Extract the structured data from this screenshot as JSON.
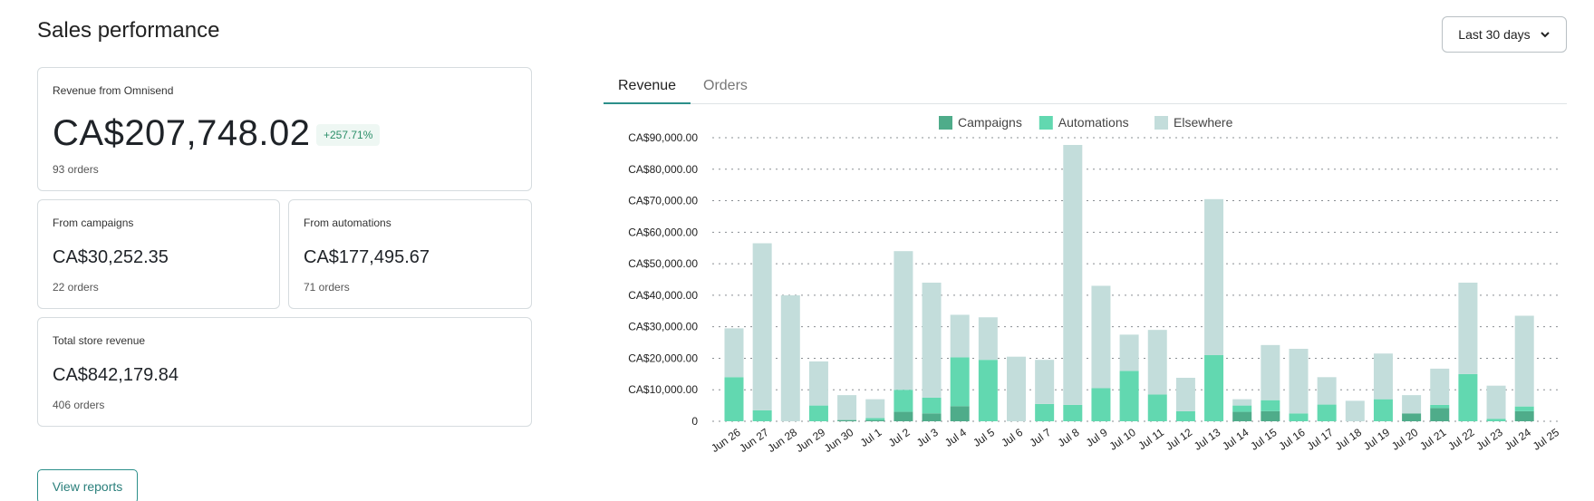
{
  "header": {
    "title": "Sales performance",
    "range_label": "Last 30 days"
  },
  "revenue_card": {
    "label": "Revenue from Omnisend",
    "value": "CA$207,748.02",
    "change": "+257.71%",
    "orders": "93 orders"
  },
  "campaigns_card": {
    "label": "From campaigns",
    "value": "CA$30,252.35",
    "orders": "22 orders"
  },
  "automations_card": {
    "label": "From automations",
    "value": "CA$177,495.67",
    "orders": "71 orders"
  },
  "total_card": {
    "label": "Total store revenue",
    "value": "CA$842,179.84",
    "orders": "406 orders"
  },
  "actions": {
    "view_reports": "View reports"
  },
  "tabs": [
    {
      "label": "Revenue",
      "active": true
    },
    {
      "label": "Orders",
      "active": false
    }
  ],
  "colors": {
    "campaigns": "#4fac8a",
    "automations": "#62d8b0",
    "elsewhere": "#c3dddb"
  },
  "chart_data": {
    "type": "bar",
    "stacked": true,
    "categories": [
      "Jun 26",
      "Jun 27",
      "Jun 28",
      "Jun 29",
      "Jun 30",
      "Jul 1",
      "Jul 2",
      "Jul 3",
      "Jul 4",
      "Jul 5",
      "Jul 6",
      "Jul 7",
      "Jul 8",
      "Jul 9",
      "Jul 10",
      "Jul 11",
      "Jul 12",
      "Jul 13",
      "Jul 14",
      "Jul 15",
      "Jul 16",
      "Jul 17",
      "Jul 18",
      "Jul 19",
      "Jul 20",
      "Jul 21",
      "Jul 22",
      "Jul 23",
      "Jul 24",
      "Jul 25"
    ],
    "series": [
      {
        "name": "Campaigns",
        "values": [
          0,
          0,
          0,
          0,
          400,
          400,
          3000,
          2500,
          4800,
          0,
          0,
          0,
          0,
          0,
          0,
          0,
          0,
          0,
          3000,
          3200,
          0,
          0,
          0,
          0,
          2500,
          4200,
          0,
          0,
          3200,
          0
        ]
      },
      {
        "name": "Automations",
        "values": [
          14000,
          3500,
          0,
          5000,
          0,
          600,
          7000,
          5000,
          15500,
          19500,
          0,
          5500,
          5200,
          10500,
          16000,
          8500,
          3200,
          21000,
          2000,
          3500,
          2500,
          5300,
          0,
          7000,
          0,
          1000,
          15000,
          800,
          1500,
          0
        ]
      },
      {
        "name": "Elsewhere",
        "values": [
          15500,
          53000,
          40000,
          14000,
          7900,
          6000,
          44000,
          36500,
          13500,
          13500,
          20500,
          14000,
          82500,
          32500,
          11500,
          20500,
          10600,
          49500,
          2000,
          17500,
          20500,
          8700,
          6500,
          14500,
          5800,
          11500,
          29000,
          10500,
          28800,
          0
        ]
      }
    ],
    "legend": [
      "Campaigns",
      "Automations",
      "Elsewhere"
    ],
    "legend_position": "top-center",
    "ylim": [
      0,
      90000
    ],
    "ytick_labels": [
      "0",
      "CA$10,000.00",
      "CA$20,000.00",
      "CA$30,000.00",
      "CA$40,000.00",
      "CA$50,000.00",
      "CA$60,000.00",
      "CA$70,000.00",
      "CA$80,000.00",
      "CA$90,000.00"
    ],
    "grid": true,
    "xlabel": "",
    "ylabel": ""
  }
}
